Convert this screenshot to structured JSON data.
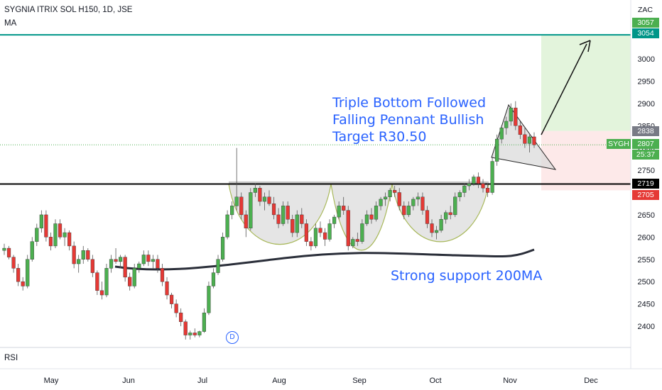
{
  "header": {
    "symbol_title": "SYGNIA ITRIX SOL H150, 1D, JSE",
    "indicator": "MA",
    "currency": "ZAC",
    "rsi_label": "RSI"
  },
  "annotations": {
    "pattern_line1": "Triple Bottom Followed",
    "pattern_line2": "Falling Pennant Bullish",
    "pattern_line3": "Target R30.50",
    "support_text": "Strong support 200MA",
    "dividend_marker": "D"
  },
  "price_badges": {
    "target_high": "3057",
    "target": "3054",
    "stop_top": "2838",
    "symbol": "SYGH",
    "last_price": "2807",
    "countdown": "25:37",
    "neckline": "2719",
    "entry": "2705"
  },
  "colors": {
    "up": "#4caf50",
    "down": "#e53935",
    "target_zone": "#e3f4dc",
    "stop_zone": "#fde9e9",
    "target_line": "#009688",
    "neckline": "#000000",
    "text_blue": "#2962ff"
  },
  "chart_data": {
    "type": "candlestick",
    "title": "SYGNIA ITRIX SOL H150, 1D, JSE",
    "y_ticks": [
      2400,
      2450,
      2500,
      2550,
      2600,
      2650,
      2700,
      2750,
      2800,
      2850,
      2900,
      2950,
      3000
    ],
    "x_ticks": [
      "May",
      "Jun",
      "Jul",
      "Aug",
      "Sep",
      "Oct",
      "Nov",
      "Dec"
    ],
    "ylim": [
      2360,
      3090
    ],
    "levels": {
      "target": 3054,
      "neckline": 2719,
      "entry": 2705,
      "stop": 2838,
      "last": 2807
    },
    "ohlc": [
      [
        2570,
        2585,
        2560,
        2575
      ],
      [
        2575,
        2580,
        2550,
        2555
      ],
      [
        2555,
        2560,
        2520,
        2530
      ],
      [
        2530,
        2540,
        2490,
        2500
      ],
      [
        2500,
        2510,
        2480,
        2490
      ],
      [
        2490,
        2560,
        2485,
        2550
      ],
      [
        2550,
        2600,
        2545,
        2590
      ],
      [
        2590,
        2630,
        2580,
        2620
      ],
      [
        2620,
        2660,
        2610,
        2650
      ],
      [
        2650,
        2660,
        2590,
        2600
      ],
      [
        2600,
        2610,
        2570,
        2580
      ],
      [
        2580,
        2640,
        2575,
        2630
      ],
      [
        2630,
        2640,
        2595,
        2600
      ],
      [
        2600,
        2620,
        2580,
        2610
      ],
      [
        2610,
        2615,
        2570,
        2580
      ],
      [
        2580,
        2590,
        2530,
        2540
      ],
      [
        2540,
        2560,
        2520,
        2550
      ],
      [
        2550,
        2580,
        2540,
        2570
      ],
      [
        2570,
        2575,
        2545,
        2550
      ],
      [
        2550,
        2560,
        2510,
        2520
      ],
      [
        2520,
        2525,
        2470,
        2480
      ],
      [
        2480,
        2500,
        2460,
        2470
      ],
      [
        2470,
        2540,
        2465,
        2530
      ],
      [
        2530,
        2560,
        2520,
        2550
      ],
      [
        2550,
        2575,
        2540,
        2545
      ],
      [
        2545,
        2560,
        2530,
        2555
      ],
      [
        2555,
        2560,
        2500,
        2510
      ],
      [
        2510,
        2520,
        2480,
        2490
      ],
      [
        2490,
        2540,
        2485,
        2530
      ],
      [
        2530,
        2545,
        2520,
        2540
      ],
      [
        2540,
        2570,
        2535,
        2560
      ],
      [
        2560,
        2570,
        2535,
        2545
      ],
      [
        2545,
        2560,
        2530,
        2550
      ],
      [
        2550,
        2560,
        2520,
        2530
      ],
      [
        2530,
        2540,
        2490,
        2500
      ],
      [
        2500,
        2510,
        2460,
        2470
      ],
      [
        2470,
        2475,
        2440,
        2450
      ],
      [
        2450,
        2460,
        2420,
        2430
      ],
      [
        2430,
        2440,
        2400,
        2410
      ],
      [
        2410,
        2415,
        2370,
        2380
      ],
      [
        2380,
        2390,
        2370,
        2385
      ],
      [
        2385,
        2395,
        2375,
        2380
      ],
      [
        2380,
        2390,
        2375,
        2388
      ],
      [
        2388,
        2440,
        2385,
        2430
      ],
      [
        2430,
        2500,
        2425,
        2490
      ],
      [
        2490,
        2530,
        2485,
        2520
      ],
      [
        2520,
        2560,
        2515,
        2550
      ],
      [
        2550,
        2610,
        2545,
        2600
      ],
      [
        2600,
        2660,
        2595,
        2650
      ],
      [
        2650,
        2680,
        2640,
        2670
      ],
      [
        2670,
        2800,
        2660,
        2690
      ],
      [
        2690,
        2700,
        2640,
        2650
      ],
      [
        2650,
        2660,
        2600,
        2620
      ],
      [
        2620,
        2710,
        2615,
        2700
      ],
      [
        2700,
        2720,
        2690,
        2710
      ],
      [
        2710,
        2715,
        2670,
        2680
      ],
      [
        2680,
        2700,
        2660,
        2690
      ],
      [
        2690,
        2705,
        2670,
        2675
      ],
      [
        2675,
        2690,
        2640,
        2650
      ],
      [
        2650,
        2665,
        2620,
        2630
      ],
      [
        2630,
        2680,
        2625,
        2670
      ],
      [
        2670,
        2680,
        2630,
        2640
      ],
      [
        2640,
        2650,
        2600,
        2610
      ],
      [
        2610,
        2660,
        2600,
        2650
      ],
      [
        2650,
        2665,
        2620,
        2630
      ],
      [
        2630,
        2640,
        2580,
        2590
      ],
      [
        2590,
        2600,
        2570,
        2580
      ],
      [
        2580,
        2630,
        2575,
        2620
      ],
      [
        2620,
        2635,
        2600,
        2610
      ],
      [
        2610,
        2620,
        2580,
        2595
      ],
      [
        2595,
        2640,
        2590,
        2630
      ],
      [
        2630,
        2650,
        2620,
        2645
      ],
      [
        2645,
        2680,
        2640,
        2670
      ],
      [
        2670,
        2690,
        2650,
        2660
      ],
      [
        2660,
        2670,
        2570,
        2580
      ],
      [
        2580,
        2600,
        2575,
        2595
      ],
      [
        2595,
        2610,
        2580,
        2590
      ],
      [
        2590,
        2640,
        2585,
        2630
      ],
      [
        2630,
        2660,
        2625,
        2650
      ],
      [
        2650,
        2665,
        2630,
        2640
      ],
      [
        2640,
        2680,
        2635,
        2670
      ],
      [
        2670,
        2690,
        2660,
        2685
      ],
      [
        2685,
        2700,
        2670,
        2690
      ],
      [
        2690,
        2710,
        2680,
        2705
      ],
      [
        2705,
        2715,
        2690,
        2700
      ],
      [
        2700,
        2710,
        2660,
        2670
      ],
      [
        2670,
        2680,
        2640,
        2650
      ],
      [
        2650,
        2680,
        2645,
        2670
      ],
      [
        2670,
        2690,
        2660,
        2685
      ],
      [
        2685,
        2700,
        2670,
        2690
      ],
      [
        2690,
        2700,
        2650,
        2660
      ],
      [
        2660,
        2670,
        2620,
        2630
      ],
      [
        2630,
        2640,
        2600,
        2610
      ],
      [
        2610,
        2625,
        2595,
        2615
      ],
      [
        2615,
        2650,
        2610,
        2640
      ],
      [
        2640,
        2660,
        2630,
        2655
      ],
      [
        2655,
        2670,
        2640,
        2650
      ],
      [
        2650,
        2700,
        2645,
        2690
      ],
      [
        2690,
        2705,
        2680,
        2700
      ],
      [
        2700,
        2720,
        2690,
        2715
      ],
      [
        2715,
        2730,
        2705,
        2720
      ],
      [
        2720,
        2740,
        2715,
        2735
      ],
      [
        2735,
        2745,
        2710,
        2720
      ],
      [
        2720,
        2730,
        2700,
        2710
      ],
      [
        2710,
        2720,
        2690,
        2700
      ],
      [
        2700,
        2780,
        2695,
        2770
      ],
      [
        2770,
        2830,
        2760,
        2820
      ],
      [
        2820,
        2850,
        2810,
        2845
      ],
      [
        2845,
        2870,
        2830,
        2860
      ],
      [
        2860,
        2900,
        2850,
        2890
      ],
      [
        2890,
        2905,
        2840,
        2850
      ],
      [
        2850,
        2860,
        2820,
        2830
      ],
      [
        2830,
        2845,
        2800,
        2810
      ],
      [
        2810,
        2830,
        2790,
        2825
      ],
      [
        2825,
        2835,
        2800,
        2807
      ]
    ]
  }
}
